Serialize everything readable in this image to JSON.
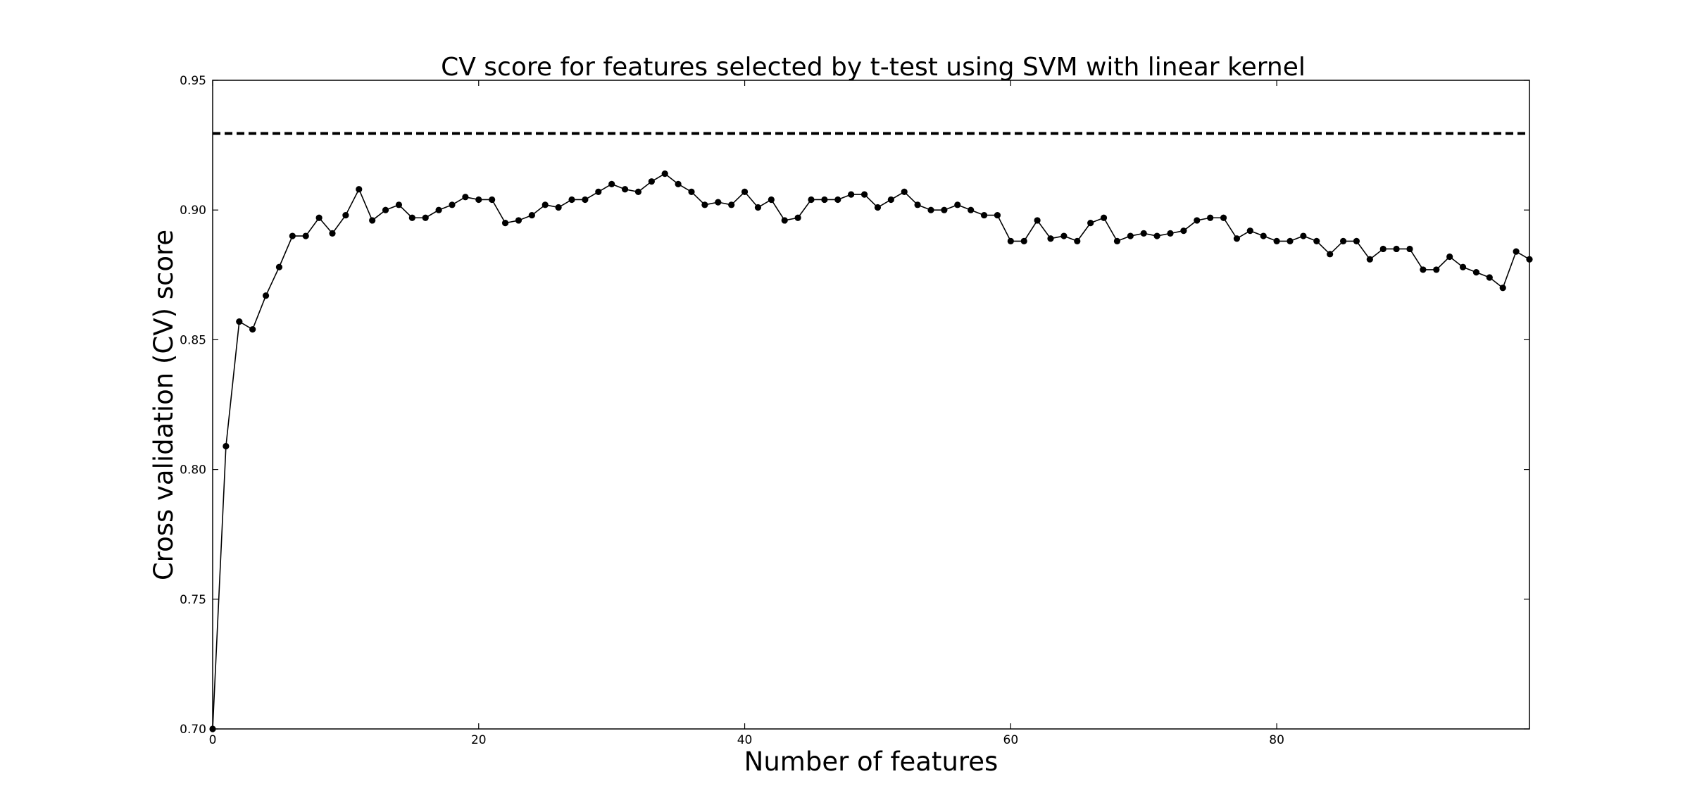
{
  "chart_data": {
    "type": "line",
    "title": "CV score for features selected by t-test using SVM with linear kernel",
    "xlabel": "Number of features",
    "ylabel": "Cross validation (CV) score",
    "xlim": [
      0,
      99
    ],
    "ylim": [
      0.7,
      0.95
    ],
    "x_ticks": [
      0,
      20,
      40,
      60,
      80
    ],
    "y_ticks": [
      0.7,
      0.75,
      0.8,
      0.85,
      0.9,
      0.95
    ],
    "x_tick_labels": [
      "0",
      "20",
      "40",
      "60",
      "80"
    ],
    "y_tick_labels": [
      "0.70",
      "0.75",
      "0.80",
      "0.85",
      "0.90",
      "0.95"
    ],
    "grid": false,
    "legend": "none",
    "series": [
      {
        "style": "solid line with filled circle markers",
        "color": "#000000",
        "x": [
          0,
          1,
          2,
          3,
          4,
          5,
          6,
          7,
          8,
          9,
          10,
          11,
          12,
          13,
          14,
          15,
          16,
          17,
          18,
          19,
          20,
          21,
          22,
          23,
          24,
          25,
          26,
          27,
          28,
          29,
          30,
          31,
          32,
          33,
          34,
          35,
          36,
          37,
          38,
          39,
          40,
          41,
          42,
          43,
          44,
          45,
          46,
          47,
          48,
          49,
          50,
          51,
          52,
          53,
          54,
          55,
          56,
          57,
          58,
          59,
          60,
          61,
          62,
          63,
          64,
          65,
          66,
          67,
          68,
          69,
          70,
          71,
          72,
          73,
          74,
          75,
          76,
          77,
          78,
          79,
          80,
          81,
          82,
          83,
          84,
          85,
          86,
          87,
          88,
          89,
          90,
          91,
          92,
          93,
          94,
          95,
          96,
          97,
          98,
          99
        ],
        "values": [
          0.7,
          0.809,
          0.857,
          0.854,
          0.867,
          0.878,
          0.89,
          0.89,
          0.897,
          0.891,
          0.898,
          0.908,
          0.896,
          0.9,
          0.902,
          0.897,
          0.897,
          0.9,
          0.902,
          0.905,
          0.904,
          0.904,
          0.895,
          0.896,
          0.898,
          0.902,
          0.901,
          0.904,
          0.904,
          0.907,
          0.91,
          0.908,
          0.907,
          0.911,
          0.914,
          0.91,
          0.907,
          0.902,
          0.903,
          0.902,
          0.907,
          0.901,
          0.904,
          0.896,
          0.897,
          0.904,
          0.904,
          0.904,
          0.906,
          0.906,
          0.901,
          0.904,
          0.907,
          0.902,
          0.9,
          0.9,
          0.902,
          0.9,
          0.898,
          0.898,
          0.888,
          0.888,
          0.896,
          0.889,
          0.89,
          0.888,
          0.895,
          0.897,
          0.888,
          0.89,
          0.891,
          0.89,
          0.891,
          0.892,
          0.896,
          0.897,
          0.897,
          0.889,
          0.892,
          0.89,
          0.888,
          0.888,
          0.89,
          0.888,
          0.883,
          0.888,
          0.888,
          0.881,
          0.885,
          0.885,
          0.885,
          0.877,
          0.877,
          0.882,
          0.878,
          0.876,
          0.874,
          0.87,
          0.884,
          0.881
        ]
      },
      {
        "style": "dashed horizontal reference line",
        "color": "#000000",
        "values": [
          0.9295
        ]
      }
    ]
  }
}
